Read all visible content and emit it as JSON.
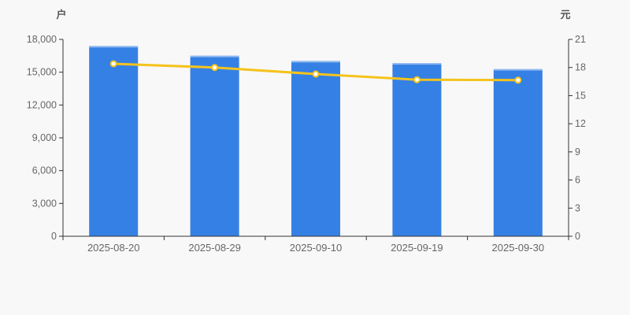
{
  "page": {
    "background": "#f8f8f8"
  },
  "chart_data": {
    "type": "bar",
    "subtype": "dual-axis bar+line",
    "title": "",
    "legend": "none",
    "grid": false,
    "categories": [
      "2025-08-20",
      "2025-08-29",
      "2025-09-10",
      "2025-09-19",
      "2025-09-30"
    ],
    "series": [
      {
        "name": "shareholder-count",
        "type": "bar",
        "axis": "left",
        "unit": "户",
        "color": "#3580e4",
        "top_highlight_color": "rgba(255,255,255,0.45)",
        "values": [
          17400,
          16510,
          16030,
          15840,
          15290
        ]
      },
      {
        "name": "stock-price",
        "type": "line",
        "axis": "right",
        "unit": "元",
        "color": "#f5c31d",
        "point_fill": "#ffffff",
        "values": [
          18.4,
          18.0,
          17.3,
          16.7,
          16.65
        ]
      }
    ],
    "left_axis": {
      "name": "户",
      "min": 0,
      "max": 18000,
      "interval": 3000,
      "tick_labels": [
        "0",
        "3,000",
        "6,000",
        "9,000",
        "12,000",
        "15,000",
        "18,000"
      ]
    },
    "right_axis": {
      "name": "元",
      "min": 0,
      "max": 21,
      "interval": 3,
      "tick_labels": [
        "0",
        "3",
        "6",
        "9",
        "12",
        "15",
        "18",
        "21"
      ]
    },
    "colors": {
      "axis_line": "#333333",
      "tick_label": "#666666",
      "axis_name": "#555555",
      "background": "#f8f8f8"
    }
  }
}
